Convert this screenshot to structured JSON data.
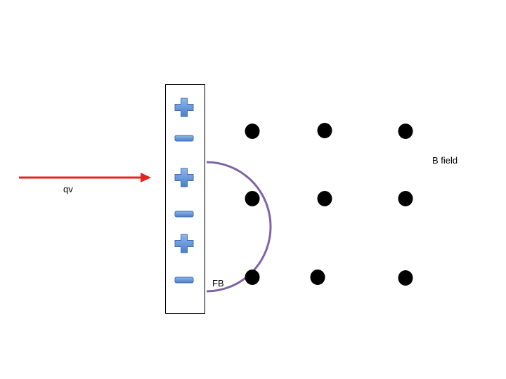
{
  "labels": {
    "qv": "qv",
    "fb": "FB",
    "b_field": "B field"
  },
  "plate": {
    "signs": [
      "+",
      "−",
      "+",
      "−",
      "+",
      "−"
    ]
  },
  "field": {
    "direction": "out-of-page",
    "rows": 3,
    "cols": 3
  },
  "icons": {
    "velocity_arrow": "arrow-right-icon",
    "plus": "plus-sign-icon",
    "minus": "minus-sign-icon",
    "field_dot": "field-dot-icon"
  },
  "colors": {
    "velocity_arrow": "#e8221d",
    "force_arc": "#7e64a6",
    "sign_fill": "#5b90d6",
    "sign_stroke": "#3f6fb0",
    "field_dot": "#000000",
    "plate_border": "#000000"
  }
}
